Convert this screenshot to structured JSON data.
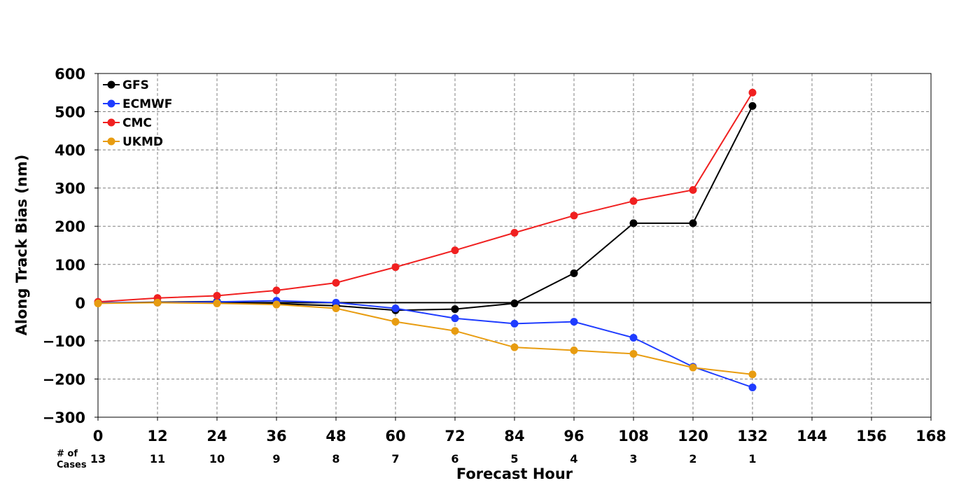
{
  "chart_data": {
    "type": "line",
    "xlabel": "Forecast Hour",
    "ylabel": "Along Track Bias (nm)",
    "xlim": [
      0,
      168
    ],
    "ylim": [
      -300,
      600
    ],
    "xticks": [
      0,
      12,
      24,
      36,
      48,
      60,
      72,
      84,
      96,
      108,
      120,
      132,
      144,
      156,
      168
    ],
    "yticks": [
      -300,
      -200,
      -100,
      0,
      100,
      200,
      300,
      400,
      500,
      600
    ],
    "ytick_labels": [
      "−300",
      "−200",
      "−100",
      "0",
      "100",
      "200",
      "300",
      "400",
      "500",
      "600"
    ],
    "grid": true,
    "legend_position": "top-left",
    "x": [
      0,
      12,
      24,
      36,
      48,
      60,
      72,
      84,
      96,
      108,
      120,
      132
    ],
    "series": [
      {
        "name": "GFS",
        "color": "#000000",
        "values": [
          -1,
          1,
          3,
          -3,
          -8,
          -20,
          -17,
          -2,
          77,
          208,
          208,
          515
        ]
      },
      {
        "name": "ECMWF",
        "color": "#1f3cff",
        "values": [
          0,
          0,
          2,
          5,
          0,
          -15,
          -41,
          -55,
          -50,
          -92,
          -168,
          -222
        ]
      },
      {
        "name": "CMC",
        "color": "#f02020",
        "values": [
          2,
          12,
          18,
          32,
          52,
          93,
          137,
          183,
          228,
          266,
          295,
          550
        ]
      },
      {
        "name": "UKMD",
        "color": "#e89c10",
        "values": [
          -2,
          0,
          -2,
          -5,
          -15,
          -50,
          -74,
          -117,
          -125,
          -134,
          -170,
          -188
        ]
      }
    ],
    "cases": {
      "label_line1": "# of",
      "label_line2": "Cases",
      "values": [
        "13",
        "11",
        "10",
        "9",
        "8",
        "7",
        "6",
        "5",
        "4",
        "3",
        "2",
        "1"
      ]
    }
  }
}
